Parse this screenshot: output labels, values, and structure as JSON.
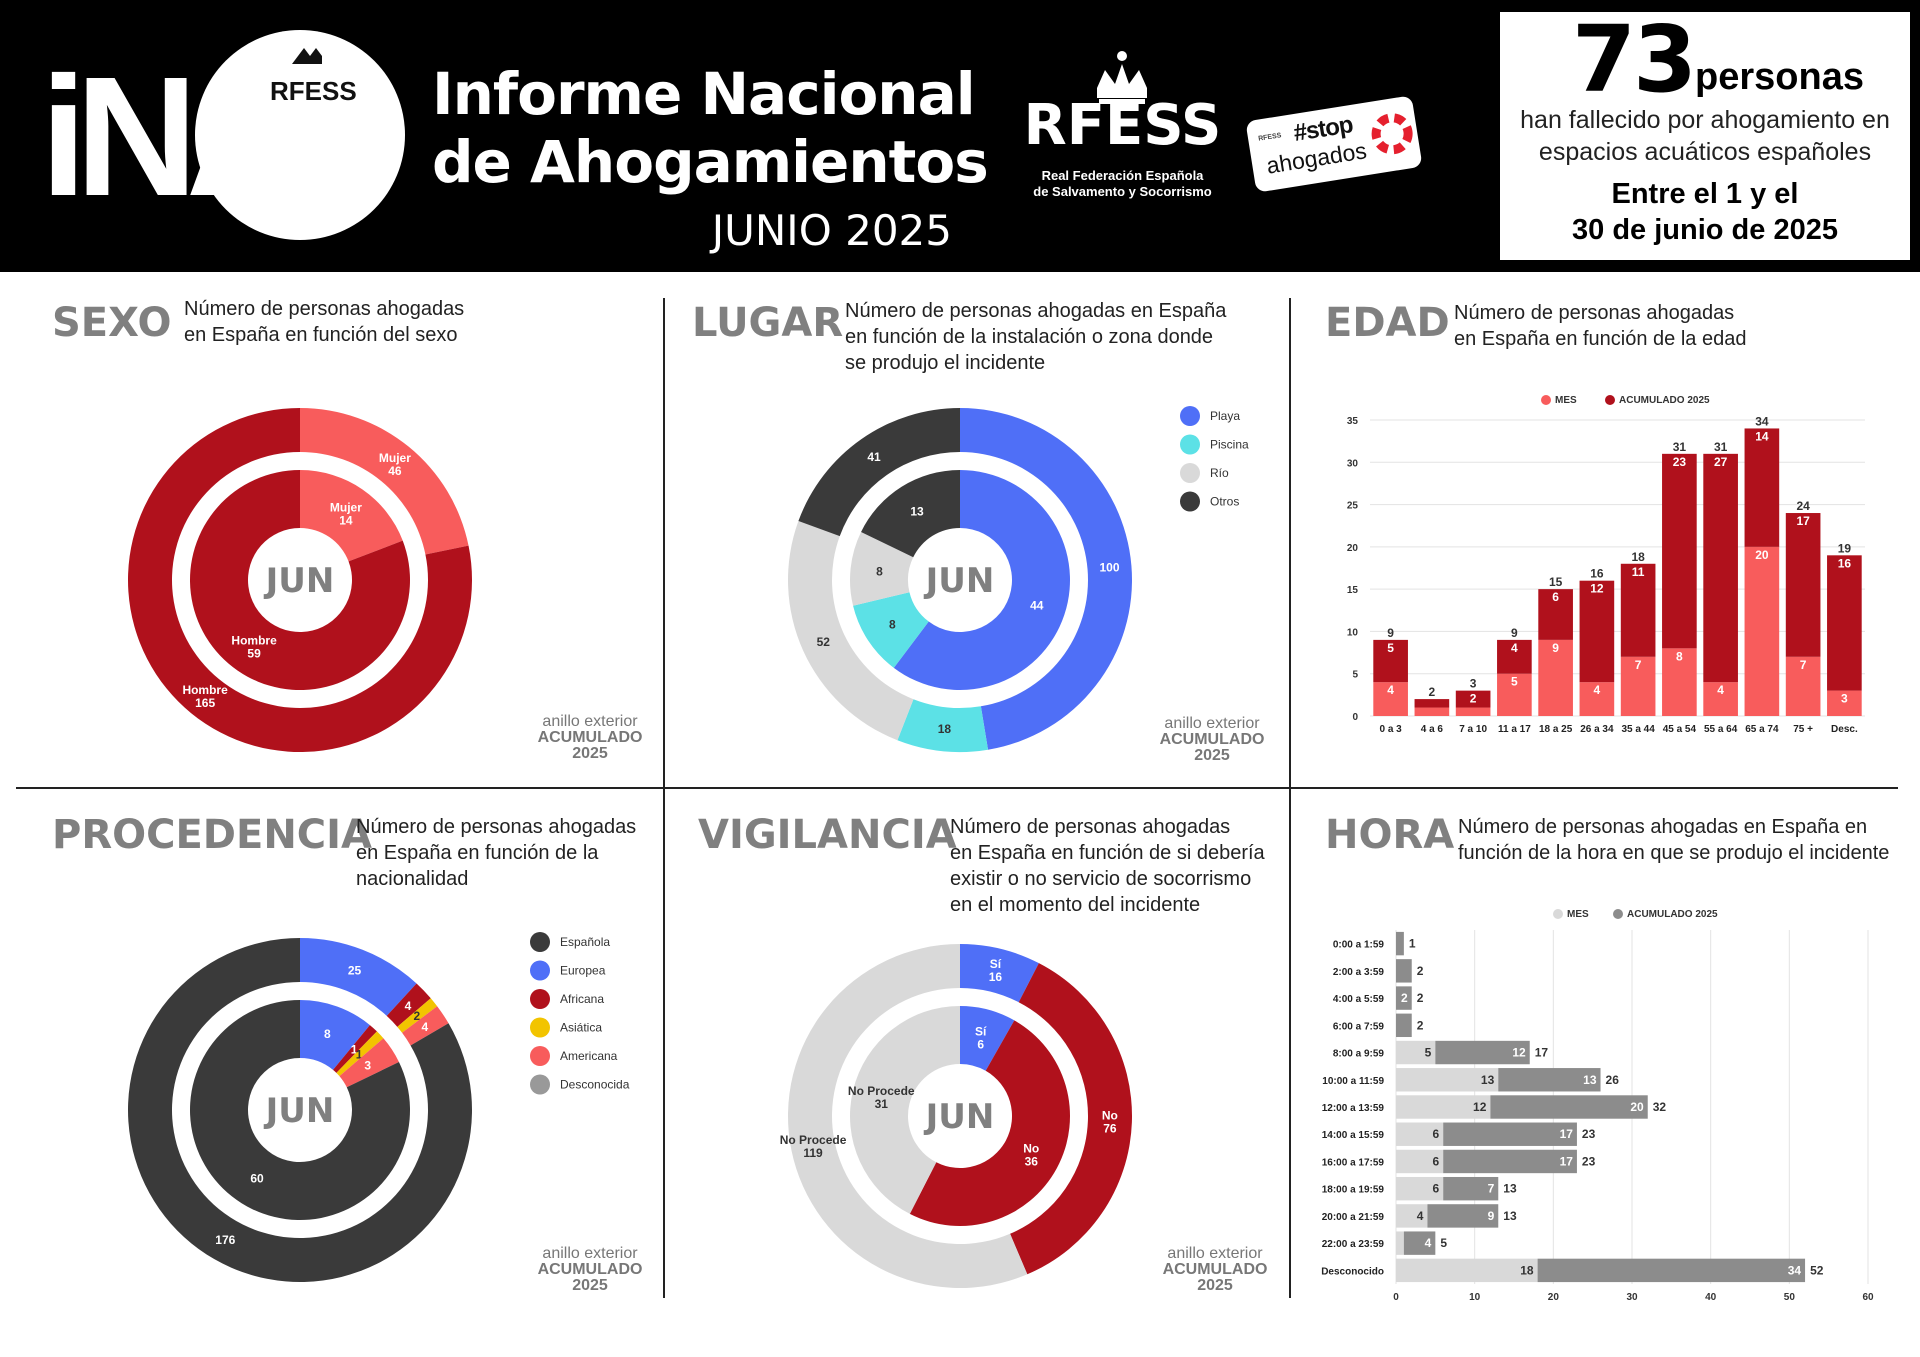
{
  "header": {
    "logo_text": "iNA",
    "logo_sub": "RFESS",
    "title_line1": "Informe Nacional",
    "title_line2": "de Ahogamientos",
    "month": "JUNIO 2025",
    "org_name": "RFESS",
    "org_full1": "Real Federación Española",
    "org_full2": "de Salvamento y Socorrismo",
    "stop_mini": "RFESS",
    "stop_tag": "#stop",
    "stop_word": "ahogados",
    "counter": {
      "number": "73",
      "unit": "personas",
      "line1": "han fallecido por ahogamiento en",
      "line2": "espacios acuáticos españoles",
      "range1": "Entre el 1 y el",
      "range2": "30 de junio de 2025"
    }
  },
  "panels": {
    "sexo": {
      "title": "SEXO",
      "desc1": "Número de personas ahogadas",
      "desc2": "en España en función del sexo"
    },
    "lugar": {
      "title": "LUGAR",
      "desc1": "Número de personas ahogadas en España",
      "desc2": "en función de la instalación o zona donde",
      "desc3": "se produjo el incidente"
    },
    "edad": {
      "title": "EDAD",
      "desc1": "Número de personas ahogadas",
      "desc2": "en España en función de la edad"
    },
    "procedencia": {
      "title": "PROCEDENCIA",
      "desc1": "Número de personas ahogadas",
      "desc2": "en España en función de la",
      "desc3": "nacionalidad"
    },
    "vigilancia": {
      "title": "VIGILANCIA",
      "desc1": "Número de personas ahogadas",
      "desc2": "en España en función de si debería",
      "desc3": "existir o no servicio de socorrismo",
      "desc4": "en el momento del incidente"
    },
    "hora": {
      "title": "HORA",
      "desc1": "Número de personas ahogadas en España en",
      "desc2": "función de la hora en que se produjo el incidente"
    }
  },
  "ring_note": {
    "line1": "anillo exterior",
    "line2": "ACUMULADO",
    "line3": "2025"
  },
  "colors": {
    "dark_red": "#b0111c",
    "light_red": "#f85c5c",
    "blue": "#4f6ff7",
    "cyan": "#5ce1e6",
    "light_grey": "#d9d9d9",
    "dark": "#3a3a3a",
    "yellow": "#f2c400",
    "grey": "#8c8c8c"
  },
  "chart_data": [
    {
      "id": "sexo",
      "type": "pie",
      "center_label": "JUN",
      "inner": [
        {
          "label": "Mujer",
          "value": 14,
          "color": "#f85c5c"
        },
        {
          "label": "Hombre",
          "value": 59,
          "color": "#b0111c"
        }
      ],
      "outer": [
        {
          "label": "Mujer",
          "value": 46,
          "color": "#f85c5c"
        },
        {
          "label": "Hombre",
          "value": 165,
          "color": "#b0111c"
        }
      ]
    },
    {
      "id": "lugar",
      "type": "pie",
      "center_label": "JUN",
      "legend": [
        "Playa",
        "Piscina",
        "Río",
        "Otros"
      ],
      "inner": [
        {
          "label": "Playa",
          "value": 44,
          "color": "#4f6ff7"
        },
        {
          "label": "Piscina",
          "value": 8,
          "color": "#5ce1e6"
        },
        {
          "label": "Río",
          "value": 8,
          "color": "#d9d9d9"
        },
        {
          "label": "Otros",
          "value": 13,
          "color": "#3a3a3a"
        }
      ],
      "outer": [
        {
          "label": "Playa",
          "value": 100,
          "color": "#4f6ff7"
        },
        {
          "label": "Piscina",
          "value": 18,
          "color": "#5ce1e6"
        },
        {
          "label": "Río",
          "value": 52,
          "color": "#d9d9d9"
        },
        {
          "label": "Otros",
          "value": 41,
          "color": "#3a3a3a"
        }
      ]
    },
    {
      "id": "edad",
      "type": "bar",
      "stacked": true,
      "legend": [
        "MES",
        "ACUMULADO 2025"
      ],
      "categories": [
        "0 a 3",
        "4 a 6",
        "7 a 10",
        "11 a 17",
        "18 a 25",
        "26 a 34",
        "35 a 44",
        "45 a 54",
        "55 a 64",
        "65 a 74",
        "75 +",
        "Desc."
      ],
      "series": [
        {
          "name": "MES",
          "values": [
            4,
            1,
            1,
            5,
            9,
            4,
            7,
            8,
            4,
            20,
            7,
            3
          ],
          "color": "#f85c5c"
        },
        {
          "name": "ACUMULADO 2025",
          "values": [
            5,
            1,
            2,
            4,
            6,
            12,
            11,
            23,
            27,
            14,
            17,
            16
          ],
          "color": "#b0111c"
        }
      ],
      "totals": [
        9,
        2,
        3,
        9,
        15,
        16,
        18,
        31,
        31,
        34,
        24,
        19
      ],
      "ylim": [
        0,
        35
      ],
      "yticks": [
        0,
        5,
        10,
        15,
        20,
        25,
        30,
        35
      ],
      "grid": true,
      "legend_position": "top"
    },
    {
      "id": "procedencia",
      "type": "pie",
      "center_label": "JUN",
      "legend": [
        "Española",
        "Europea",
        "Africana",
        "Asiática",
        "Americana",
        "Desconocida"
      ],
      "inner": [
        {
          "label": "Europea",
          "value": 8,
          "color": "#4f6ff7"
        },
        {
          "label": "Africana",
          "value": 1,
          "color": "#b0111c"
        },
        {
          "label": "Asiática",
          "value": 1,
          "color": "#f2c400"
        },
        {
          "label": "Americana",
          "value": 3,
          "color": "#f85c5c"
        },
        {
          "label": "Española",
          "value": 60,
          "color": "#3a3a3a"
        }
      ],
      "outer": [
        {
          "label": "Europea",
          "value": 25,
          "color": "#4f6ff7"
        },
        {
          "label": "Africana",
          "value": 4,
          "color": "#b0111c"
        },
        {
          "label": "Asiática",
          "value": 2,
          "color": "#f2c400"
        },
        {
          "label": "Americana",
          "value": 4,
          "color": "#f85c5c"
        },
        {
          "label": "Española",
          "value": 176,
          "color": "#3a3a3a"
        }
      ]
    },
    {
      "id": "vigilancia",
      "type": "pie",
      "center_label": "JUN",
      "inner": [
        {
          "label": "Sí",
          "value": 6,
          "color": "#4f6ff7"
        },
        {
          "label": "No",
          "value": 36,
          "color": "#b0111c"
        },
        {
          "label": "No Procede",
          "value": 31,
          "color": "#d9d9d9"
        }
      ],
      "outer": [
        {
          "label": "Sí",
          "value": 16,
          "color": "#4f6ff7"
        },
        {
          "label": "No",
          "value": 76,
          "color": "#b0111c"
        },
        {
          "label": "No Procede",
          "value": 119,
          "color": "#d9d9d9"
        }
      ]
    },
    {
      "id": "hora",
      "type": "bar",
      "orientation": "horizontal",
      "stacked": true,
      "legend": [
        "MES",
        "ACUMULADO 2025"
      ],
      "categories": [
        "0:00 a 1:59",
        "2:00 a 3:59",
        "4:00 a 5:59",
        "6:00 a 7:59",
        "8:00 a 9:59",
        "10:00 a 11:59",
        "12:00 a 13:59",
        "14:00 a 15:59",
        "16:00 a 17:59",
        "18:00 a 19:59",
        "20:00 a 21:59",
        "22:00 a 23:59",
        "Desconocido"
      ],
      "series": [
        {
          "name": "MES",
          "values": [
            0,
            0,
            0,
            0,
            5,
            13,
            12,
            6,
            6,
            6,
            4,
            1,
            18
          ],
          "color": "#d9d9d9"
        },
        {
          "name": "ACUMULADO 2025",
          "values": [
            1,
            2,
            2,
            2,
            12,
            13,
            20,
            17,
            17,
            7,
            9,
            4,
            34
          ],
          "color": "#8c8c8c"
        }
      ],
      "seg_labels_mes": [
        "",
        "",
        "",
        "",
        "5",
        "13",
        "12",
        "6",
        "6",
        "6",
        "4",
        "",
        "18"
      ],
      "seg_labels_acum": [
        "",
        "",
        "2",
        "",
        "12",
        "13",
        "20",
        "17",
        "17",
        "7",
        "9",
        "4",
        "34"
      ],
      "totals": [
        1,
        2,
        2,
        2,
        17,
        26,
        32,
        23,
        23,
        13,
        13,
        5,
        52
      ],
      "xlim": [
        0,
        60
      ],
      "xticks": [
        0,
        10,
        20,
        30,
        40,
        50,
        60
      ],
      "grid": true,
      "legend_position": "top"
    }
  ]
}
